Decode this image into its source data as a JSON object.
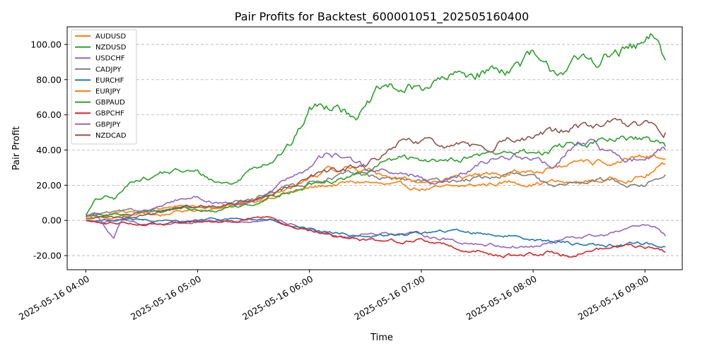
{
  "chart_data": {
    "type": "line",
    "title": "Pair Profits for Backtest_600001051_202505160400",
    "xlabel": "Time",
    "ylabel": "Pair Profit",
    "x_tick_labels": [
      "2025-05-16 04:00",
      "2025-05-16 05:00",
      "2025-05-16 06:00",
      "2025-05-16 07:00",
      "2025-05-16 08:00",
      "2025-05-16 09:00"
    ],
    "x_range_minutes": [
      -10,
      320
    ],
    "y_tick_labels": [
      "-20.00",
      "0.00",
      "20.00",
      "40.00",
      "60.00",
      "80.00",
      "100.00"
    ],
    "y_ticks": [
      -20,
      0,
      20,
      40,
      60,
      80,
      100
    ],
    "ylim": [
      -28,
      110
    ],
    "grid": "y-dashed",
    "legend_position": "upper-left",
    "series": [
      {
        "name": "AUDUSD",
        "color": "#ff7f0e",
        "x": [
          0,
          10,
          20,
          30,
          40,
          50,
          60,
          70,
          80,
          90,
          100,
          110,
          120,
          130,
          140,
          150,
          160,
          170,
          180,
          190,
          200,
          210,
          220,
          230,
          240,
          250,
          260,
          270,
          280,
          290,
          300,
          311
        ],
        "y": [
          2,
          3,
          5,
          4,
          3,
          5,
          6,
          7,
          9,
          10,
          14,
          16,
          18,
          20,
          21,
          22,
          20,
          19,
          18,
          18,
          19,
          20,
          21,
          22,
          21,
          22,
          21,
          22,
          23,
          24,
          25,
          32
        ]
      },
      {
        "name": "NZDUSD",
        "color": "#2ca02c",
        "x": [
          0,
          5,
          10,
          15,
          20,
          25,
          30,
          35,
          40,
          50,
          60,
          70,
          80,
          90,
          100,
          110,
          115,
          120,
          125,
          130,
          135,
          140,
          145,
          150,
          155,
          160,
          170,
          180,
          185,
          190,
          200,
          210,
          220,
          230,
          240,
          245,
          250,
          255,
          260,
          270,
          280,
          290,
          300,
          305,
          311
        ],
        "y": [
          3,
          11,
          13,
          12,
          17,
          22,
          25,
          24,
          27,
          28,
          27,
          22,
          21,
          31,
          35,
          43,
          52,
          63,
          65,
          65,
          69,
          62,
          61,
          63,
          70,
          75,
          74,
          75,
          78,
          79,
          82,
          84,
          86,
          88,
          93,
          85,
          84,
          86,
          89,
          90,
          93,
          96,
          99,
          102,
          91
        ]
      },
      {
        "name": "USDCHF",
        "color": "#9467bd",
        "x": [
          0,
          10,
          20,
          30,
          40,
          60,
          80,
          100,
          120,
          140,
          160,
          180,
          200,
          220,
          240,
          250,
          260,
          280,
          290,
          300,
          305,
          311
        ],
        "y": [
          0,
          -1,
          0,
          -2,
          -2,
          -1,
          -1,
          0,
          -5,
          -9,
          -7,
          -8,
          -12,
          -14,
          -15,
          -13,
          -10,
          -8,
          -5,
          -3,
          -4,
          -9
        ]
      },
      {
        "name": "CADJPY",
        "color": "#7f7f7f",
        "x": [
          0,
          10,
          20,
          30,
          40,
          50,
          60,
          70,
          80,
          90,
          100,
          110,
          120,
          130,
          140,
          150,
          160,
          170,
          180,
          190,
          200,
          210,
          220,
          230,
          240,
          250,
          260,
          270,
          280,
          290,
          300,
          311
        ],
        "y": [
          3,
          4,
          5,
          5,
          6,
          7,
          7,
          6,
          10,
          12,
          17,
          20,
          22,
          24,
          26,
          25,
          24,
          23,
          22,
          22,
          23,
          24,
          25,
          26,
          24,
          18,
          22,
          24,
          23,
          21,
          20,
          26
        ]
      },
      {
        "name": "EURCHF",
        "color": "#1f77b4",
        "x": [
          0,
          10,
          20,
          30,
          40,
          60,
          80,
          100,
          110,
          120,
          140,
          160,
          180,
          200,
          220,
          240,
          250,
          260,
          280,
          300,
          311
        ],
        "y": [
          0,
          0,
          1,
          0,
          -1,
          0,
          1,
          0,
          -4,
          -6,
          -8,
          -9,
          -7,
          -6,
          -8,
          -10,
          -12,
          -13,
          -14,
          -13,
          -15
        ]
      },
      {
        "name": "EURJPY",
        "color": "#ff7f0e",
        "x": [
          0,
          10,
          20,
          30,
          40,
          50,
          60,
          70,
          80,
          90,
          100,
          110,
          120,
          130,
          140,
          150,
          160,
          170,
          180,
          190,
          200,
          210,
          220,
          230,
          240,
          250,
          260,
          270,
          280,
          290,
          300,
          311
        ],
        "y": [
          1,
          2,
          3,
          4,
          6,
          8,
          8,
          7,
          9,
          11,
          15,
          18,
          24,
          28,
          30,
          29,
          26,
          24,
          22,
          23,
          24,
          25,
          26,
          27,
          28,
          30,
          31,
          32,
          33,
          34,
          35,
          35
        ]
      },
      {
        "name": "GBPAUD",
        "color": "#2ca02c",
        "x": [
          0,
          10,
          20,
          30,
          40,
          50,
          60,
          70,
          80,
          90,
          100,
          110,
          120,
          130,
          140,
          150,
          160,
          170,
          180,
          190,
          200,
          210,
          220,
          230,
          240,
          250,
          260,
          270,
          280,
          290,
          300,
          311
        ],
        "y": [
          2,
          3,
          4,
          5,
          6,
          7,
          6,
          5,
          8,
          10,
          14,
          17,
          20,
          22,
          24,
          27,
          33,
          35,
          34,
          35,
          36,
          37,
          38,
          39,
          38,
          40,
          43,
          44,
          45,
          46,
          45,
          42
        ]
      },
      {
        "name": "GBPCHF",
        "color": "#d62728",
        "x": [
          0,
          10,
          20,
          30,
          40,
          60,
          80,
          90,
          100,
          110,
          120,
          130,
          140,
          160,
          180,
          190,
          200,
          220,
          240,
          250,
          260,
          270,
          280,
          290,
          300,
          305,
          311
        ],
        "y": [
          0,
          -2,
          -1,
          -2,
          -2,
          -1,
          -1,
          2,
          2,
          -3,
          -6,
          -9,
          -11,
          -12,
          -11,
          -13,
          -16,
          -19,
          -20,
          -18,
          -19,
          -17,
          -16,
          -14,
          -15,
          -16,
          -18
        ]
      },
      {
        "name": "GBPJPY",
        "color": "#9467bd",
        "x": [
          0,
          5,
          10,
          15,
          20,
          30,
          40,
          50,
          60,
          70,
          80,
          90,
          100,
          110,
          120,
          130,
          140,
          150,
          160,
          170,
          180,
          190,
          200,
          210,
          220,
          230,
          240,
          250,
          260,
          270,
          280,
          290,
          300,
          311
        ],
        "y": [
          3,
          4,
          -3,
          -10,
          2,
          5,
          8,
          12,
          14,
          10,
          8,
          10,
          16,
          25,
          30,
          38,
          36,
          30,
          28,
          26,
          24,
          22,
          25,
          30,
          35,
          37,
          35,
          30,
          40,
          44,
          38,
          35,
          34,
          40
        ]
      },
      {
        "name": "NZDCAD",
        "color": "#8c564b",
        "x": [
          0,
          10,
          20,
          30,
          40,
          50,
          60,
          70,
          80,
          90,
          100,
          110,
          120,
          130,
          140,
          150,
          160,
          170,
          180,
          190,
          200,
          210,
          220,
          230,
          240,
          250,
          260,
          270,
          280,
          290,
          300,
          311
        ],
        "y": [
          1,
          2,
          2,
          3,
          5,
          7,
          8,
          8,
          10,
          12,
          16,
          20,
          24,
          27,
          29,
          31,
          37,
          44,
          44,
          43,
          42,
          41,
          44,
          47,
          47,
          49,
          52,
          54,
          54,
          55,
          54,
          50
        ]
      }
    ]
  }
}
